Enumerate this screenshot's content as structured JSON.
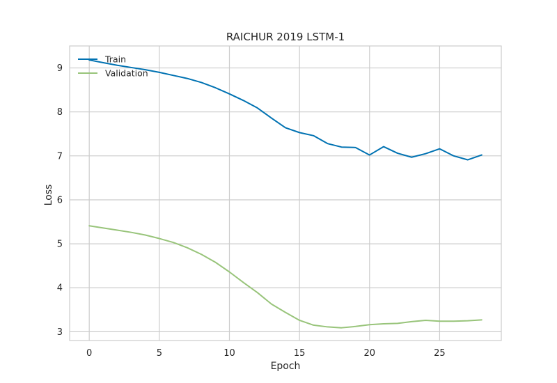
{
  "chart_data": {
    "type": "line",
    "title": "RAICHUR 2019 LSTM-1",
    "xlabel": "Epoch",
    "ylabel": "Loss",
    "xlim": [
      -1.4,
      29.4
    ],
    "ylim": [
      2.8,
      9.5
    ],
    "xticks": [
      0,
      5,
      10,
      15,
      20,
      25
    ],
    "yticks": [
      3,
      4,
      5,
      6,
      7,
      8,
      9
    ],
    "grid": true,
    "legend_position": "top-left",
    "x": [
      0,
      1,
      2,
      3,
      4,
      5,
      6,
      7,
      8,
      9,
      10,
      11,
      12,
      13,
      14,
      15,
      16,
      17,
      18,
      19,
      20,
      21,
      22,
      23,
      24,
      25,
      26,
      27,
      28
    ],
    "series": [
      {
        "name": "Train",
        "color": "#0072b2",
        "values": [
          9.18,
          9.12,
          9.06,
          9.01,
          8.96,
          8.9,
          8.83,
          8.76,
          8.67,
          8.55,
          8.41,
          8.26,
          8.09,
          7.86,
          7.64,
          7.53,
          7.46,
          7.28,
          7.2,
          7.19,
          7.02,
          7.21,
          7.06,
          6.97,
          7.05,
          7.16,
          7.0,
          6.91,
          7.02
        ]
      },
      {
        "name": "Validation",
        "color": "#98c47a",
        "values": [
          5.41,
          5.36,
          5.31,
          5.26,
          5.2,
          5.12,
          5.03,
          4.91,
          4.76,
          4.58,
          4.36,
          4.12,
          3.89,
          3.63,
          3.44,
          3.26,
          3.15,
          3.11,
          3.09,
          3.12,
          3.16,
          3.18,
          3.19,
          3.23,
          3.26,
          3.24,
          3.24,
          3.25,
          3.27
        ]
      }
    ]
  }
}
